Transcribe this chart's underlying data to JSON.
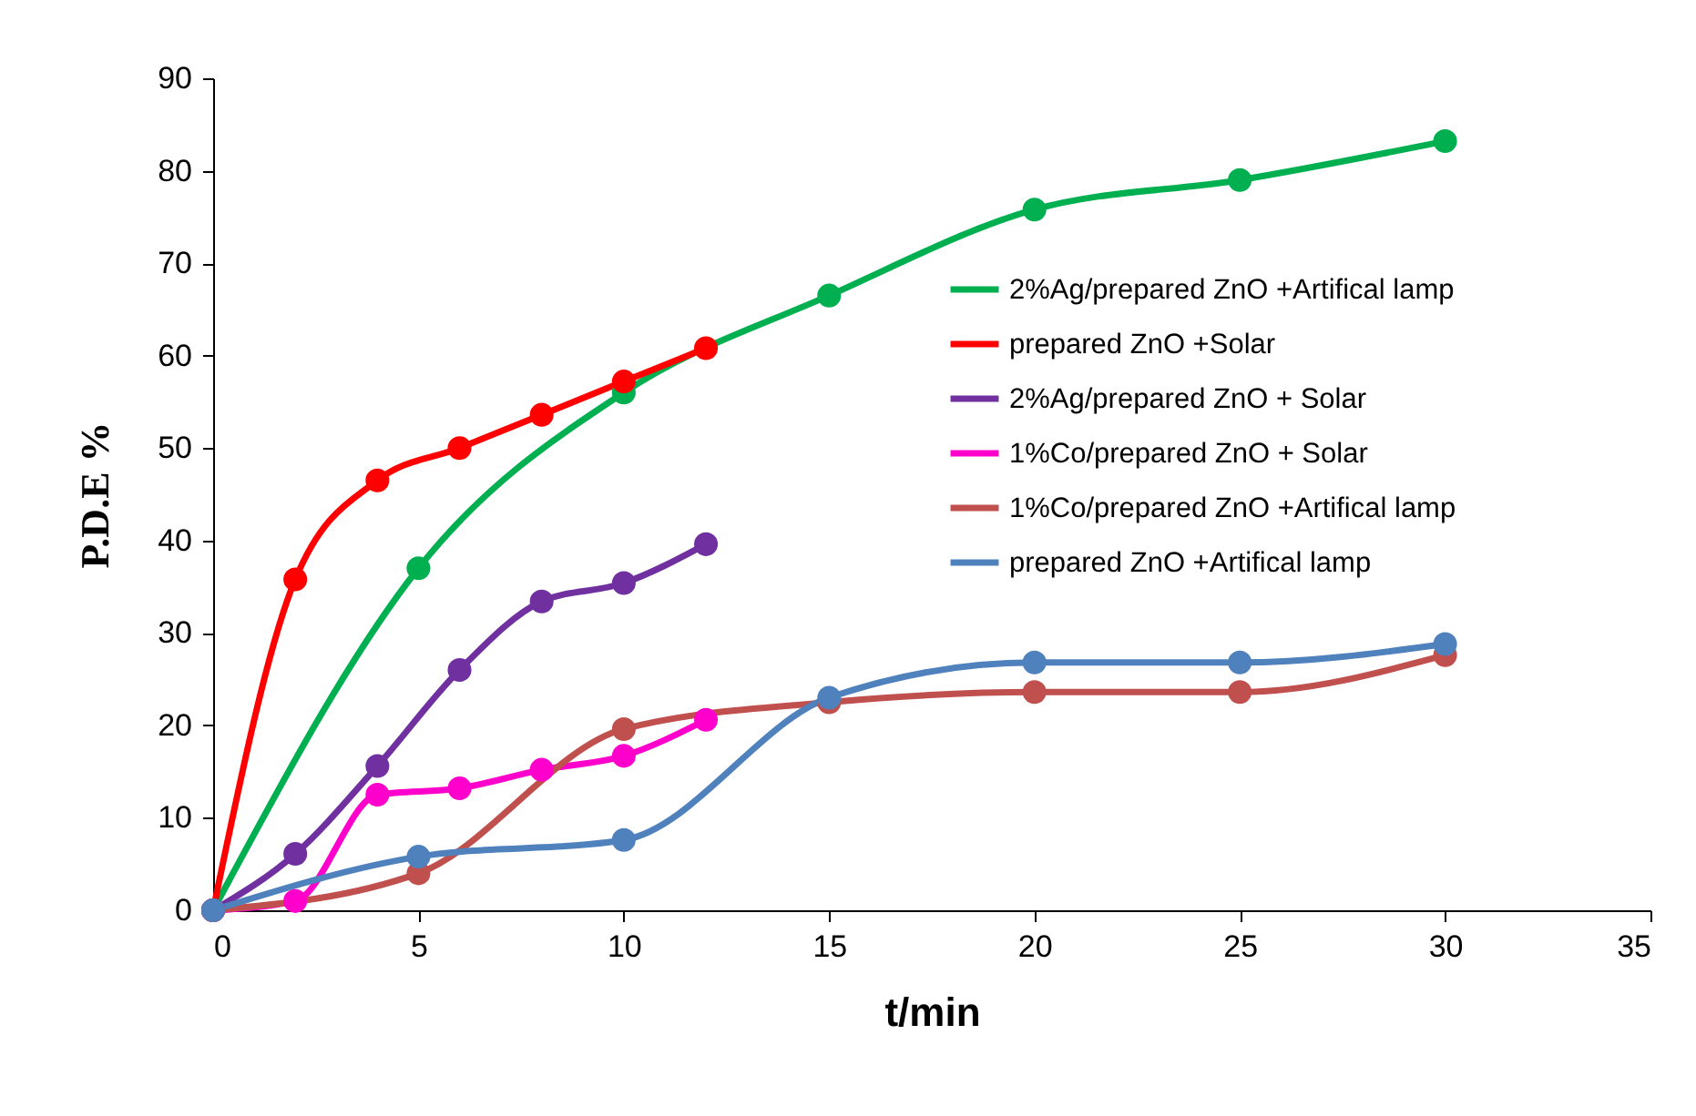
{
  "chart_data": {
    "type": "line",
    "xlabel": "t/min",
    "ylabel": "P.D.E %",
    "xlim": [
      0,
      35
    ],
    "ylim": [
      0,
      90
    ],
    "xticks": [
      0,
      5,
      10,
      15,
      20,
      25,
      30,
      35
    ],
    "yticks": [
      0,
      10,
      20,
      30,
      40,
      50,
      60,
      70,
      80,
      90
    ],
    "grid": false,
    "legend": "right",
    "marker": "circle",
    "line_style": "solid",
    "series": [
      {
        "name": "2%Ag/prepared ZnO +Artifical lamp",
        "color": "#00b050",
        "x": [
          0,
          5,
          10,
          15,
          20,
          25,
          30
        ],
        "values": [
          0,
          37,
          56,
          66.5,
          75.8,
          79,
          83.2
        ]
      },
      {
        "name": "prepared ZnO +Solar",
        "color": "#ff0000",
        "x": [
          0,
          2,
          4,
          6,
          8,
          10,
          12
        ],
        "values": [
          0,
          35.8,
          46.5,
          50,
          53.6,
          57.2,
          60.8
        ]
      },
      {
        "name": "2%Ag/prepared ZnO + Solar",
        "color": "#7030a0",
        "x": [
          0,
          2,
          4,
          6,
          8,
          10,
          12
        ],
        "values": [
          0,
          6.1,
          15.6,
          26,
          33.4,
          35.4,
          39.6
        ]
      },
      {
        "name": "1%Co/prepared ZnO + Solar",
        "color": "#ff00cc",
        "x": [
          0,
          2,
          4,
          6,
          8,
          10,
          12
        ],
        "values": [
          0,
          1,
          12.5,
          13.2,
          15.2,
          16.7,
          20.6
        ]
      },
      {
        "name": "1%Co/prepared ZnO +Artifical lamp",
        "color": "#c0504d",
        "x": [
          0,
          5,
          10,
          15,
          20,
          25,
          30
        ],
        "values": [
          0,
          4,
          19.6,
          22.5,
          23.6,
          23.6,
          27.6
        ]
      },
      {
        "name": "prepared ZnO +Artifical lamp",
        "color": "#4f81bd",
        "x": [
          0,
          5,
          10,
          15,
          20,
          25,
          30
        ],
        "values": [
          0,
          5.8,
          7.6,
          23,
          26.8,
          26.8,
          28.8
        ]
      }
    ]
  }
}
